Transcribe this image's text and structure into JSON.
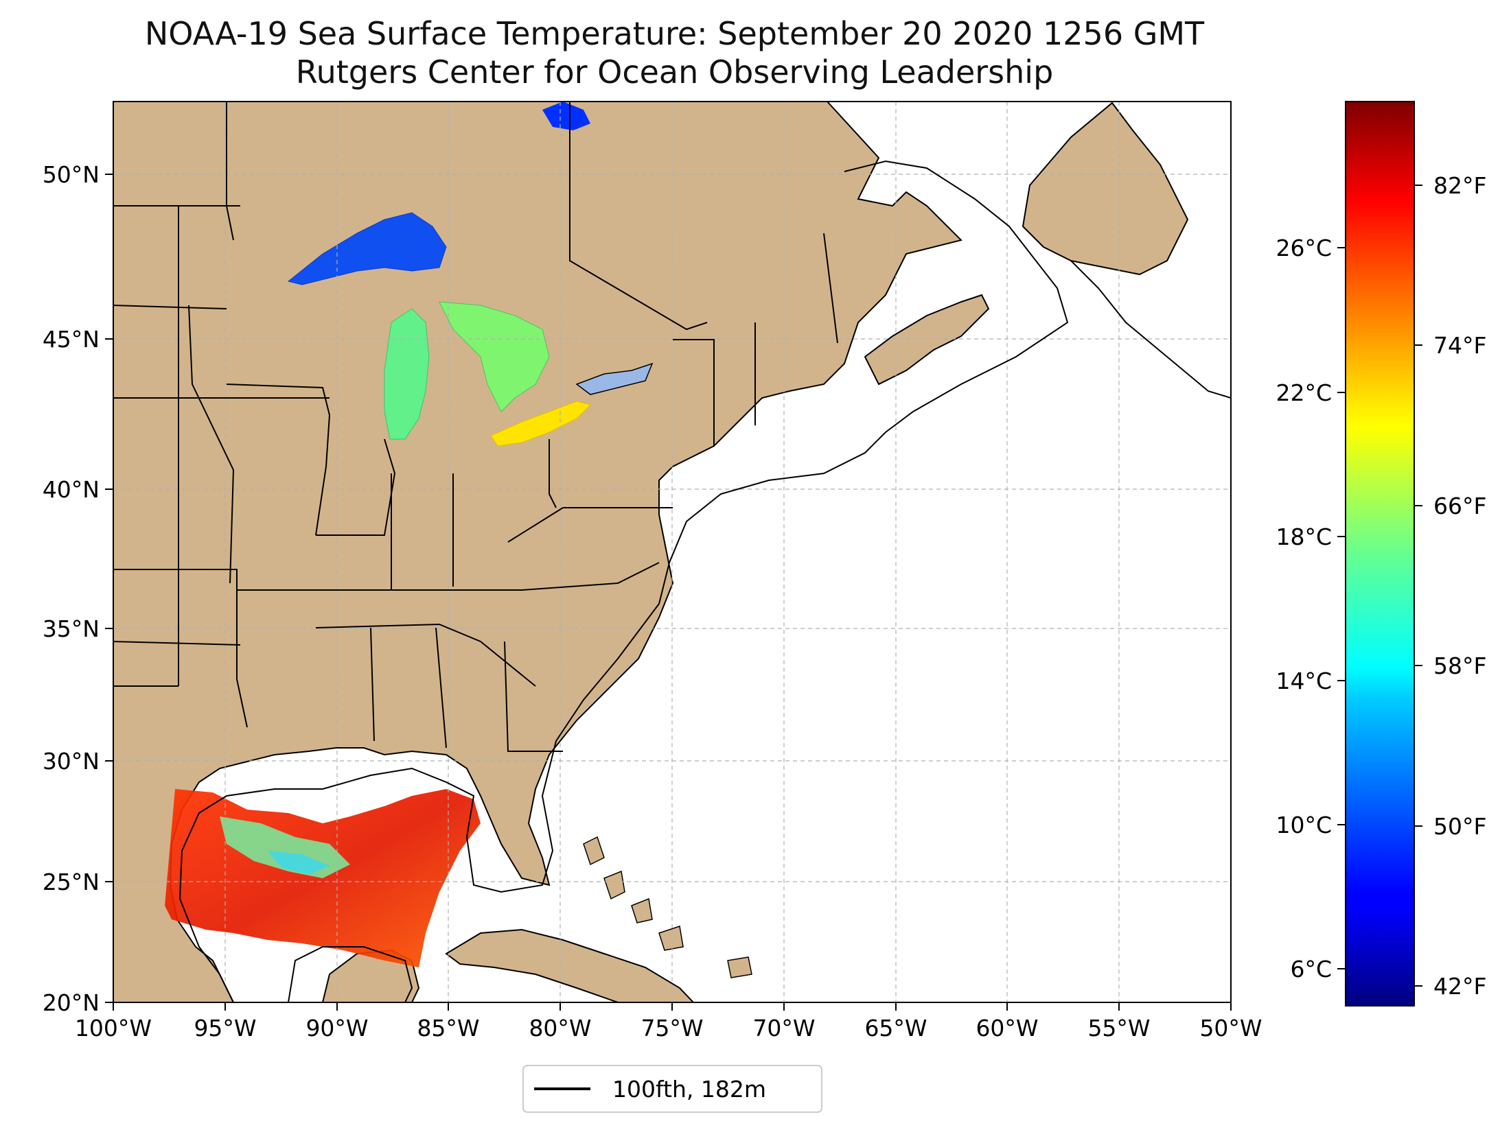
{
  "title": "NOAA-19 Sea Surface Temperature: September 20 2020 1256 GMT",
  "subtitle": "Rutgers Center for Ocean Observing Leadership",
  "map": {
    "extent": {
      "lon": [
        -100,
        -50
      ],
      "lat": [
        20,
        52.2
      ]
    },
    "lat_ticks": [
      {
        "value": 20,
        "label": "20°N"
      },
      {
        "value": 25,
        "label": "25°N"
      },
      {
        "value": 30,
        "label": "30°N"
      },
      {
        "value": 35,
        "label": "35°N"
      },
      {
        "value": 40,
        "label": "40°N"
      },
      {
        "value": 45,
        "label": "45°N"
      },
      {
        "value": 50,
        "label": "50°N"
      }
    ],
    "lon_ticks": [
      {
        "value": -100,
        "label": "100°W"
      },
      {
        "value": -95,
        "label": "95°W"
      },
      {
        "value": -90,
        "label": "90°W"
      },
      {
        "value": -85,
        "label": "85°W"
      },
      {
        "value": -80,
        "label": "80°W"
      },
      {
        "value": -75,
        "label": "75°W"
      },
      {
        "value": -70,
        "label": "70°W"
      },
      {
        "value": -65,
        "label": "65°W"
      },
      {
        "value": -60,
        "label": "60°W"
      },
      {
        "value": -55,
        "label": "55°W"
      },
      {
        "value": -50,
        "label": "50°W"
      }
    ],
    "grid": true,
    "colors": {
      "land": "#d2b48c",
      "ocean": "#ffffff",
      "lakes_no_data": "#9ab8e6",
      "grid": "#b0b0b0",
      "coast": "#000000"
    }
  },
  "legend": {
    "label": "100fth, 182m",
    "placement": "bottom-center"
  },
  "colorbar": {
    "colormap": "jet",
    "celsius_ticks": [
      {
        "value": 6,
        "label": "6°C"
      },
      {
        "value": 10,
        "label": "10°C"
      },
      {
        "value": 14,
        "label": "14°C"
      },
      {
        "value": 18,
        "label": "18°C"
      },
      {
        "value": 22,
        "label": "22°C"
      },
      {
        "value": 26,
        "label": "26°C"
      }
    ],
    "fahrenheit_ticks": [
      {
        "value": 42,
        "label": "42°F"
      },
      {
        "value": 50,
        "label": "50°F"
      },
      {
        "value": 58,
        "label": "58°F"
      },
      {
        "value": 66,
        "label": "66°F"
      },
      {
        "value": 74,
        "label": "74°F"
      },
      {
        "value": 82,
        "label": "82°F"
      }
    ],
    "range_f": [
      41,
      86
    ]
  }
}
